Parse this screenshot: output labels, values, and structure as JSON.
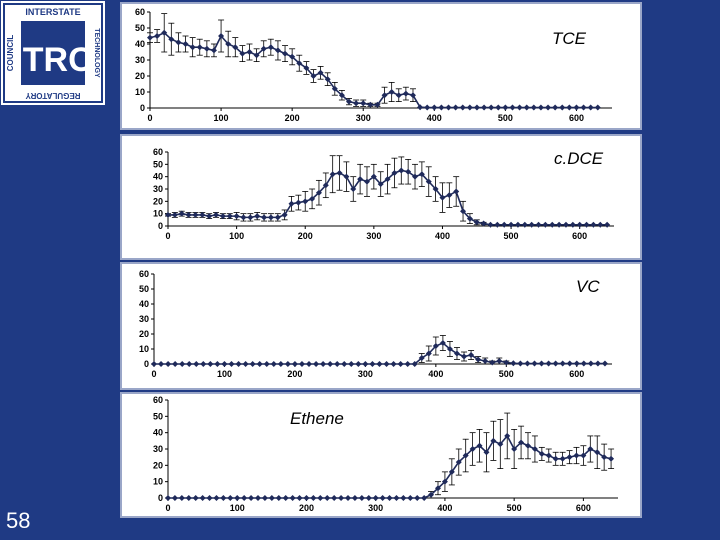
{
  "slide": {
    "number": "58"
  },
  "logo": {
    "top_text": "INTERSTATE",
    "left_text": "COUNCIL",
    "right_text": "TECHNOLOGY",
    "bottom_text": "REGULATORY",
    "center_text": "ITRC"
  },
  "colors": {
    "background": "#1f3a84",
    "series": "#1f2a5a",
    "panel_border": "#9aa6c8"
  },
  "chart_data": [
    {
      "type": "line",
      "title": "TCE",
      "title_position": "top-right",
      "xlim": [
        0,
        650
      ],
      "ylim": [
        0,
        60
      ],
      "x_ticks": [
        "0",
        "100",
        "200",
        "300",
        "400",
        "500",
        "600"
      ],
      "y_ticks": [
        "0",
        "10",
        "20",
        "30",
        "40",
        "50",
        "60"
      ],
      "x": [
        0,
        10,
        20,
        30,
        40,
        50,
        60,
        70,
        80,
        90,
        100,
        110,
        120,
        130,
        140,
        150,
        160,
        170,
        180,
        190,
        200,
        210,
        220,
        230,
        240,
        250,
        260,
        270,
        280,
        290,
        300,
        310,
        320,
        330,
        340,
        350,
        360,
        370,
        380,
        390,
        400,
        410,
        420,
        430,
        440,
        450,
        460,
        470,
        480,
        490,
        500,
        510,
        520,
        530,
        540,
        550,
        560,
        570,
        580,
        590,
        600,
        610,
        620,
        630
      ],
      "y": [
        44,
        45,
        47,
        43,
        41,
        40,
        38,
        38,
        37,
        36,
        45,
        40,
        38,
        34,
        35,
        33,
        37,
        38,
        36,
        34,
        32,
        28,
        25,
        20,
        22,
        18,
        12,
        8,
        4,
        3,
        3,
        2,
        2,
        8,
        10,
        8,
        9,
        8,
        0.5,
        0.3,
        0.3,
        0.3,
        0.3,
        0.3,
        0.3,
        0.3,
        0.3,
        0.3,
        0.3,
        0.3,
        0.3,
        0.3,
        0.3,
        0.3,
        0.3,
        0.3,
        0.3,
        0.3,
        0.3,
        0.3,
        0.3,
        0.3,
        0.3,
        0.3
      ],
      "err": [
        3,
        4,
        12,
        10,
        6,
        5,
        6,
        5,
        5,
        4,
        10,
        8,
        6,
        5,
        5,
        4,
        5,
        5,
        6,
        5,
        5,
        5,
        4,
        4,
        4,
        4,
        4,
        3,
        2,
        2,
        2,
        1,
        1,
        5,
        6,
        4,
        4,
        4,
        0.3,
        0.2,
        0.2,
        0.2,
        0.2,
        0.2,
        0.2,
        0.2,
        0.2,
        0.2,
        0.2,
        0.2,
        0.2,
        0.2,
        0.2,
        0.2,
        0.2,
        0.2,
        0.2,
        0.2,
        0.2,
        0.2,
        0.2,
        0.2,
        0.2,
        0.2
      ]
    },
    {
      "type": "line",
      "title": "c.DCE",
      "title_position": "top-right",
      "xlim": [
        0,
        650
      ],
      "ylim": [
        0,
        60
      ],
      "x_ticks": [
        "0",
        "100",
        "200",
        "300",
        "400",
        "500",
        "600"
      ],
      "y_ticks": [
        "0",
        "10",
        "20",
        "30",
        "40",
        "50",
        "60"
      ],
      "x": [
        0,
        10,
        20,
        30,
        40,
        50,
        60,
        70,
        80,
        90,
        100,
        110,
        120,
        130,
        140,
        150,
        160,
        170,
        180,
        190,
        200,
        210,
        220,
        230,
        240,
        250,
        260,
        270,
        280,
        290,
        300,
        310,
        320,
        330,
        340,
        350,
        360,
        370,
        380,
        390,
        400,
        410,
        420,
        430,
        440,
        450,
        460,
        470,
        480,
        490,
        500,
        510,
        520,
        530,
        540,
        550,
        560,
        570,
        580,
        590,
        600,
        610,
        620,
        630,
        640
      ],
      "y": [
        9,
        9,
        10,
        9,
        9,
        9,
        8,
        9,
        8,
        8,
        8,
        7,
        7,
        8,
        7,
        7,
        7,
        9,
        18,
        19,
        20,
        22,
        27,
        33,
        42,
        43,
        40,
        30,
        38,
        36,
        40,
        34,
        38,
        43,
        45,
        44,
        40,
        42,
        36,
        30,
        23,
        25,
        28,
        12,
        6,
        3,
        2,
        1,
        1,
        1,
        1,
        1,
        1,
        1,
        1,
        1,
        1,
        1,
        1,
        1,
        1,
        1,
        1,
        1,
        1
      ],
      "err": [
        1,
        2,
        2,
        2,
        2,
        2,
        2,
        2,
        2,
        2,
        3,
        3,
        3,
        3,
        3,
        3,
        3,
        4,
        6,
        6,
        8,
        8,
        10,
        10,
        15,
        14,
        12,
        10,
        12,
        12,
        10,
        10,
        12,
        12,
        11,
        10,
        10,
        10,
        12,
        10,
        12,
        10,
        12,
        8,
        4,
        2,
        1,
        0.5,
        0.5,
        0.5,
        0.5,
        0.5,
        0.5,
        0.5,
        0.5,
        0.5,
        0.5,
        0.5,
        0.5,
        0.5,
        0.5,
        0.5,
        0.5,
        0.5,
        0.5
      ]
    },
    {
      "type": "line",
      "title": "VC",
      "title_position": "top-right",
      "xlim": [
        0,
        650
      ],
      "ylim": [
        0,
        60
      ],
      "x_ticks": [
        "0",
        "100",
        "200",
        "300",
        "400",
        "500",
        "600"
      ],
      "y_ticks": [
        "0",
        "10",
        "20",
        "30",
        "40",
        "50",
        "60"
      ],
      "x": [
        0,
        10,
        20,
        30,
        40,
        50,
        60,
        70,
        80,
        90,
        100,
        110,
        120,
        130,
        140,
        150,
        160,
        170,
        180,
        190,
        200,
        210,
        220,
        230,
        240,
        250,
        260,
        270,
        280,
        290,
        300,
        310,
        320,
        330,
        340,
        350,
        360,
        370,
        380,
        390,
        400,
        410,
        420,
        430,
        440,
        450,
        460,
        470,
        480,
        490,
        500,
        510,
        520,
        530,
        540,
        550,
        560,
        570,
        580,
        590,
        600,
        610,
        620,
        630,
        640
      ],
      "y": [
        0,
        0,
        0,
        0,
        0,
        0,
        0,
        0,
        0,
        0,
        0,
        0,
        0,
        0,
        0,
        0,
        0,
        0,
        0,
        0,
        0,
        0,
        0,
        0,
        0,
        0,
        0,
        0,
        0,
        0,
        0,
        0,
        0,
        0,
        0,
        0,
        0,
        0,
        4,
        7,
        12,
        14,
        10,
        7,
        5,
        6,
        3,
        2,
        1,
        2,
        1,
        0.5,
        0.3,
        0.3,
        0.3,
        0.3,
        0.3,
        0.3,
        0.3,
        0.3,
        0.3,
        0.3,
        0.3,
        0.3,
        0.3
      ],
      "err": [
        0.5,
        0.5,
        0.5,
        0.5,
        0.5,
        0.5,
        0.5,
        0.5,
        0.5,
        0.5,
        0.5,
        0.5,
        0.5,
        0.5,
        0.5,
        0.5,
        0.5,
        0.5,
        0.5,
        0.5,
        0.5,
        0.5,
        0.5,
        0.5,
        0.5,
        0.5,
        0.5,
        0.5,
        0.5,
        0.5,
        0.5,
        0.5,
        0.5,
        0.5,
        0.5,
        0.5,
        0.5,
        0.5,
        3,
        5,
        6,
        5,
        5,
        4,
        3,
        3,
        2,
        2,
        1,
        2,
        1,
        0.3,
        0.2,
        0.2,
        0.2,
        0.2,
        0.2,
        0.2,
        0.2,
        0.2,
        0.2,
        0.2,
        0.2,
        0.2,
        0.2
      ]
    },
    {
      "type": "line",
      "title": "Ethene",
      "title_position": "top-left",
      "xlim": [
        0,
        650
      ],
      "ylim": [
        0,
        60
      ],
      "x_ticks": [
        "0",
        "100",
        "200",
        "300",
        "400",
        "500",
        "600"
      ],
      "y_ticks": [
        "0",
        "10",
        "20",
        "30",
        "40",
        "50",
        "60"
      ],
      "x": [
        0,
        10,
        20,
        30,
        40,
        50,
        60,
        70,
        80,
        90,
        100,
        110,
        120,
        130,
        140,
        150,
        160,
        170,
        180,
        190,
        200,
        210,
        220,
        230,
        240,
        250,
        260,
        270,
        280,
        290,
        300,
        310,
        320,
        330,
        340,
        350,
        360,
        370,
        380,
        390,
        400,
        410,
        420,
        430,
        440,
        450,
        460,
        470,
        480,
        490,
        500,
        510,
        520,
        530,
        540,
        550,
        560,
        570,
        580,
        590,
        600,
        610,
        620,
        630,
        640
      ],
      "y": [
        0,
        0,
        0,
        0,
        0,
        0,
        0,
        0,
        0,
        0,
        0,
        0,
        0,
        0,
        0,
        0,
        0,
        0,
        0,
        0,
        0,
        0,
        0,
        0,
        0,
        0,
        0,
        0,
        0,
        0,
        0,
        0,
        0,
        0,
        0,
        0,
        0,
        0,
        2,
        6,
        10,
        16,
        22,
        26,
        30,
        32,
        28,
        35,
        33,
        38,
        30,
        34,
        32,
        30,
        27,
        26,
        24,
        24,
        25,
        26,
        26,
        30,
        28,
        25,
        24
      ],
      "err": [
        0.3,
        0.3,
        0.3,
        0.3,
        0.3,
        0.3,
        0.3,
        0.3,
        0.3,
        0.3,
        0.3,
        0.3,
        0.3,
        0.3,
        0.3,
        0.3,
        0.3,
        0.3,
        0.3,
        0.3,
        0.3,
        0.3,
        0.3,
        0.3,
        0.3,
        0.3,
        0.3,
        0.3,
        0.3,
        0.3,
        0.3,
        0.3,
        0.3,
        0.3,
        0.3,
        0.3,
        0.3,
        0.3,
        2,
        4,
        6,
        8,
        8,
        10,
        10,
        10,
        12,
        12,
        15,
        14,
        12,
        10,
        8,
        8,
        4,
        4,
        4,
        4,
        4,
        5,
        6,
        8,
        10,
        8,
        6
      ]
    }
  ]
}
